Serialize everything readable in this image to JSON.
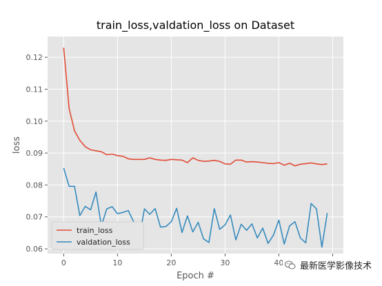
{
  "chart_data": {
    "type": "line",
    "title": "train_loss,valdation_loss on Dataset",
    "xlabel": "Epoch #",
    "ylabel": "loss",
    "xlim": [
      -3.0,
      52.0
    ],
    "ylim": [
      0.0585,
      0.1265
    ],
    "xticks": [
      0,
      10,
      20,
      30,
      40,
      50
    ],
    "yticks": [
      0.06,
      0.07,
      0.08,
      0.09,
      0.1,
      0.11,
      0.12
    ],
    "xtick_labels": [
      "0",
      "10",
      "20",
      "30",
      "40",
      "50"
    ],
    "ytick_labels": [
      "0.06",
      "0.07",
      "0.08",
      "0.09",
      "0.10",
      "0.11",
      "0.12"
    ],
    "grid": true,
    "style": "ggplot",
    "legend_position": "lower-left",
    "x": [
      0,
      1,
      2,
      3,
      4,
      5,
      6,
      7,
      8,
      9,
      10,
      11,
      12,
      13,
      14,
      15,
      16,
      17,
      18,
      19,
      20,
      21,
      22,
      23,
      24,
      25,
      26,
      27,
      28,
      29,
      30,
      31,
      32,
      33,
      34,
      35,
      36,
      37,
      38,
      39,
      40,
      41,
      42,
      43,
      44,
      45,
      46,
      47,
      48,
      49
    ],
    "series": [
      {
        "name": "train_loss",
        "color": "#E24A33",
        "values": [
          0.123,
          0.104,
          0.097,
          0.094,
          0.092,
          0.091,
          0.0907,
          0.0904,
          0.0895,
          0.0897,
          0.0892,
          0.089,
          0.0882,
          0.088,
          0.088,
          0.088,
          0.0885,
          0.088,
          0.0878,
          0.0877,
          0.088,
          0.0879,
          0.0878,
          0.087,
          0.0885,
          0.0877,
          0.0874,
          0.0875,
          0.0877,
          0.0874,
          0.0866,
          0.0865,
          0.0878,
          0.0878,
          0.0872,
          0.0873,
          0.0872,
          0.087,
          0.0868,
          0.0867,
          0.087,
          0.0862,
          0.0868,
          0.086,
          0.0865,
          0.0867,
          0.0869,
          0.0866,
          0.0864,
          0.0866
        ]
      },
      {
        "name": "valdation_loss",
        "color": "#348ABD",
        "values": [
          0.0853,
          0.0796,
          0.0796,
          0.0704,
          0.0733,
          0.0722,
          0.0778,
          0.0672,
          0.0725,
          0.0732,
          0.071,
          0.0714,
          0.072,
          0.0685,
          0.0628,
          0.0725,
          0.0708,
          0.0726,
          0.0668,
          0.067,
          0.0685,
          0.0727,
          0.0651,
          0.0703,
          0.0653,
          0.0683,
          0.0631,
          0.062,
          0.0726,
          0.0661,
          0.0675,
          0.0706,
          0.0628,
          0.0677,
          0.0658,
          0.0678,
          0.0634,
          0.0665,
          0.0617,
          0.0643,
          0.069,
          0.0615,
          0.0672,
          0.0685,
          0.0634,
          0.0619,
          0.0742,
          0.0725,
          0.0605,
          0.0712
        ]
      }
    ]
  },
  "colors": {
    "plot_background": "#E5E5E5",
    "grid": "#FFFFFF",
    "tick_label": "#555555",
    "axis_label": "#555555",
    "title": "#000000"
  },
  "watermark": {
    "text": "最新医学影像技术",
    "icon": "wechat-icon"
  }
}
